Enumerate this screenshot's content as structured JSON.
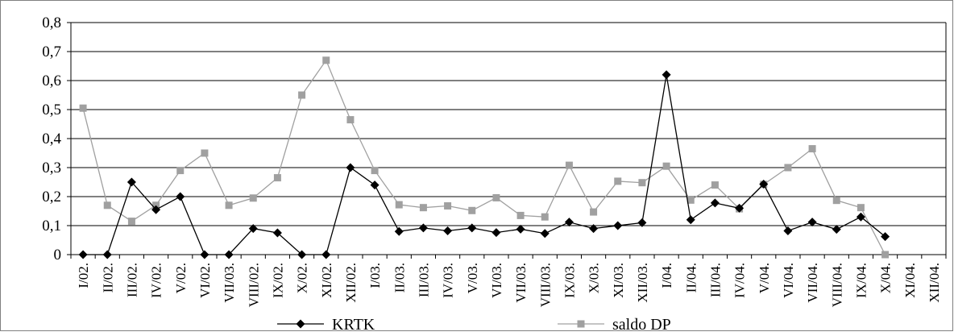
{
  "chart_data": {
    "type": "line",
    "title": "",
    "xlabel": "",
    "ylabel": "",
    "ylim": [
      0,
      0.8
    ],
    "yticks": [
      "0",
      "0,1",
      "0,2",
      "0,3",
      "0,4",
      "0,5",
      "0,6",
      "0,7",
      "0,8"
    ],
    "grid": "horizontal",
    "legend_position": "bottom",
    "categories": [
      "I/02.",
      "II/02.",
      "III/02.",
      "IV/02.",
      "V/02.",
      "VI/02.",
      "VII/03.",
      "VIII/02.",
      "IX/02.",
      "X/02.",
      "XI/02.",
      "XII/02.",
      "I/03.",
      "II/03.",
      "III/03.",
      "IV/03.",
      "V/03.",
      "VI/03.",
      "VII/03.",
      "VIII/03.",
      "IX/03.",
      "X/03.",
      "XI/03.",
      "XII/03.",
      "I/04.",
      "II/04.",
      "III/04.",
      "IV/04.",
      "V/04.",
      "VI/04.",
      "VII/04.",
      "VIII/04.",
      "IX/04.",
      "X/04.",
      "XI/04.",
      "XII/04."
    ],
    "series": [
      {
        "name": "KRTK",
        "color": "#000000",
        "marker": "diamond",
        "values": [
          0,
          0,
          0.25,
          0.155,
          0.2,
          0,
          0,
          0.09,
          0.075,
          0,
          0,
          0.3,
          0.24,
          0.08,
          0.092,
          0.082,
          0.092,
          0.076,
          0.088,
          0.073,
          0.112,
          0.09,
          0.1,
          0.11,
          0.62,
          0.12,
          0.178,
          0.16,
          0.243,
          0.082,
          0.112,
          0.087,
          0.13,
          0.062,
          null,
          null
        ]
      },
      {
        "name": "saldo DP",
        "color": "#a0a0a0",
        "marker": "square",
        "values": [
          0.505,
          0.17,
          0.115,
          0.17,
          0.29,
          0.35,
          0.17,
          0.195,
          0.265,
          0.55,
          0.67,
          0.465,
          0.29,
          0.172,
          0.162,
          0.168,
          0.152,
          0.196,
          0.135,
          0.13,
          0.308,
          0.147,
          0.253,
          0.248,
          0.305,
          0.188,
          0.24,
          0.158,
          0.242,
          0.3,
          0.365,
          0.187,
          0.162,
          0,
          null,
          null
        ]
      }
    ]
  }
}
